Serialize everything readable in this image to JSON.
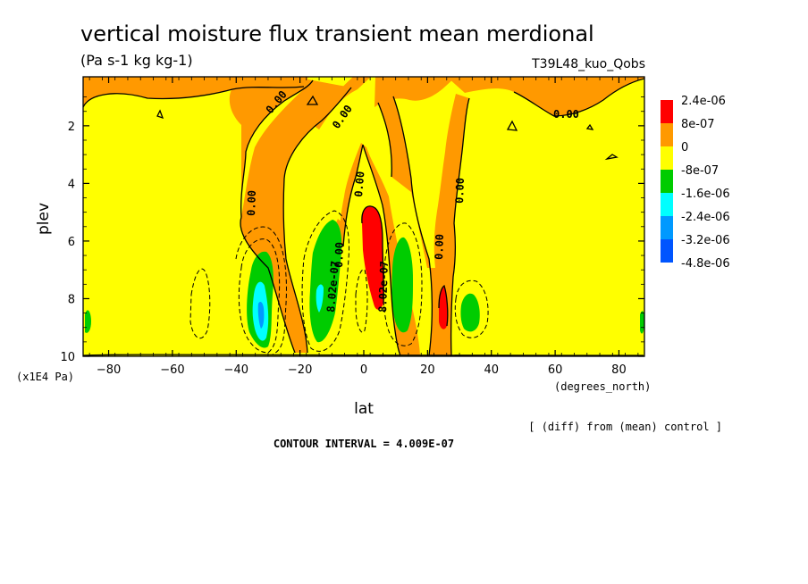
{
  "chart_data": {
    "type": "heatmap",
    "title": "vertical moisture flux transient mean merdional",
    "units": "(Pa s-1 kg kg-1)",
    "experiment": "T39L48_kuo_Qobs",
    "xlabel": "lat",
    "ylabel": "plev",
    "x_unit_label": "(degrees_north)",
    "y_unit_label": "(x1E4 Pa)",
    "xlim": [
      -88,
      88
    ],
    "ylim": [
      10,
      0.3
    ],
    "x_ticks": [
      -80,
      -60,
      -40,
      -20,
      0,
      20,
      40,
      60,
      80
    ],
    "x_tick_labels": [
      "−80",
      "−60",
      "−40",
      "−20",
      "0",
      "20",
      "40",
      "60",
      "80"
    ],
    "y_ticks": [
      2,
      4,
      6,
      8,
      10
    ],
    "y_tick_labels": [
      "2",
      "4",
      "6",
      "8",
      "10"
    ],
    "diff_note": "[ (diff) from (mean) control ]",
    "contour_interval_text": "CONTOUR INTERVAL = 4.009E-07",
    "legend": {
      "placement": "right",
      "labels": [
        "2.4e-06",
        "8e-07",
        "0",
        "-8e-07",
        "-1.6e-06",
        "-2.4e-06",
        "-3.2e-06",
        "-4.8e-06"
      ],
      "colors": [
        "#ff0000",
        "#ff9900",
        "#ffff00",
        "#00cc00",
        "#00ffff",
        "#0099ff",
        "#0055ff"
      ]
    },
    "contour_labels": [
      "0.00",
      "0.00",
      "0.00",
      "0.00",
      "0.00",
      "0.00",
      "0.00",
      "0.00",
      "8.02e-07",
      "8.02e-07"
    ],
    "features": [
      {
        "type": "positive",
        "level": "8e-07",
        "lat": -10,
        "plev_range": [
          6.2,
          9.5
        ]
      },
      {
        "type": "positive",
        "level": "2.4e-06",
        "lat": 3,
        "plev_range": [
          4.7,
          7.6
        ]
      },
      {
        "type": "positive",
        "level": "2.4e-06",
        "lat": 25,
        "plev_range": [
          7.5,
          9.0
        ]
      },
      {
        "type": "negative",
        "level": "-2.4e-06",
        "lat": -33,
        "plev_range": [
          7.3,
          9.5
        ]
      },
      {
        "type": "negative",
        "level": "-1.6e-06",
        "lat": -12,
        "plev_range": [
          6.5,
          8.5
        ]
      },
      {
        "type": "negative",
        "level": "-1.6e-06",
        "lat": 12,
        "plev_range": [
          6.0,
          9.2
        ]
      },
      {
        "type": "negative",
        "level": "-1.6e-06",
        "lat": 32,
        "plev_range": [
          7.7,
          9.0
        ]
      }
    ]
  }
}
